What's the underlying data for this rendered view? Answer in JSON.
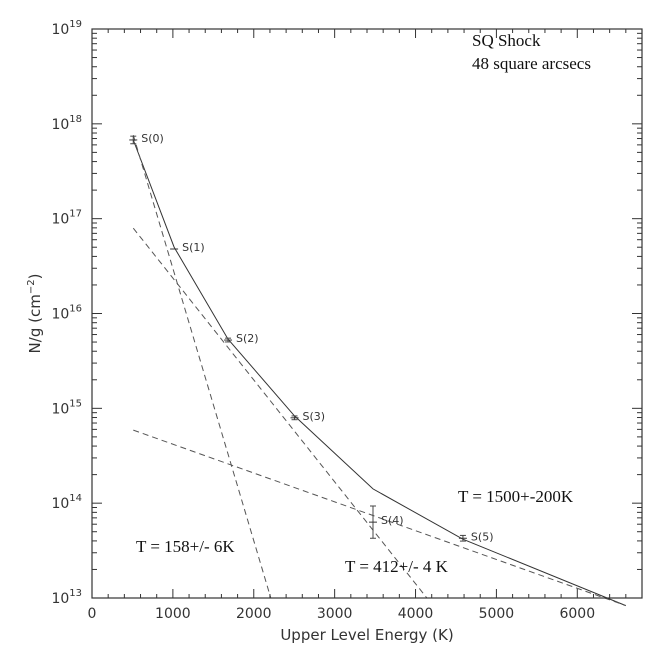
{
  "chart_data": {
    "type": "line",
    "xlabel": "Upper Level Energy (K)",
    "ylabel_parts": {
      "base": "N/g (cm",
      "sup": "−2",
      "close": ")"
    },
    "xlim": [
      0,
      6800
    ],
    "ylim_log10": [
      13,
      19
    ],
    "y_scale": "log",
    "x_ticks": [
      0,
      1000,
      2000,
      3000,
      4000,
      5000,
      6000
    ],
    "y_ticks_log10": [
      13,
      14,
      15,
      16,
      17,
      18,
      19
    ],
    "y_tick_base": "10",
    "grid": false,
    "annotations": {
      "region": [
        "SQ Shock",
        "48 square arcsecs"
      ],
      "t_low": "T = 158+/- 6K",
      "t_mid": "T = 412+/- 4 K",
      "t_high": "T = 1500+-200K"
    },
    "points": [
      {
        "label": "S(0)",
        "x": 510,
        "log10_y": 17.83,
        "err_log10": 0.04
      },
      {
        "label": "S(1)",
        "x": 1015,
        "log10_y": 16.68,
        "err_log10": 0.0
      },
      {
        "label": "S(2)",
        "x": 1682,
        "log10_y": 15.72,
        "err_log10": 0.02
      },
      {
        "label": "S(3)",
        "x": 2504,
        "log10_y": 14.9,
        "err_log10": 0.02
      },
      {
        "label": "S(4)",
        "x": 3474,
        "log10_y": 13.8,
        "err_log10": 0.17
      },
      {
        "label": "S(5)",
        "x": 4586,
        "log10_y": 13.63,
        "err_log10": 0.03
      }
    ],
    "series": [
      {
        "style": "solid",
        "x": [
          510,
          1015,
          1682,
          2504,
          3474,
          4586,
          6600
        ],
        "log10_y": [
          17.83,
          16.7,
          15.73,
          14.92,
          14.15,
          13.62,
          12.92
        ]
      },
      {
        "style": "dashed",
        "x": [
          510,
          2210
        ],
        "log10_y": [
          17.88,
          13.0
        ]
      },
      {
        "style": "dashed",
        "x": [
          510,
          4140
        ],
        "log10_y": [
          16.9,
          13.0
        ]
      },
      {
        "style": "dashed",
        "x": [
          510,
          6600
        ],
        "log10_y": [
          14.77,
          12.92
        ]
      }
    ]
  }
}
